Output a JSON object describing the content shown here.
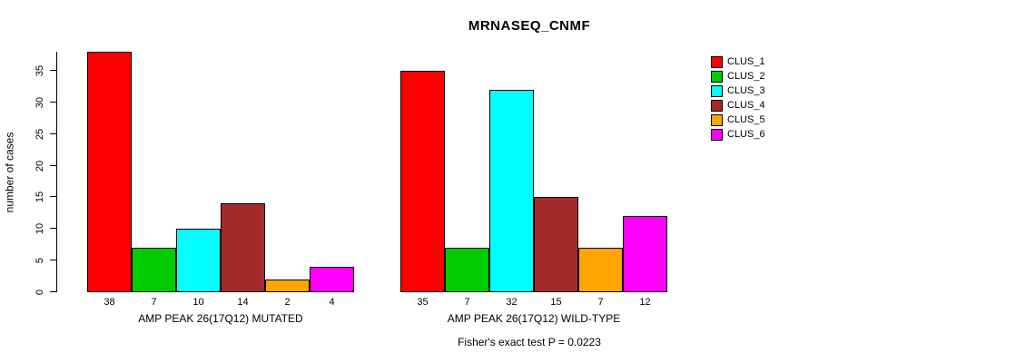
{
  "chart_data": {
    "type": "bar",
    "title": "MRNASEQ_CNMF",
    "ylabel": "number of cases",
    "subtitle": "Fisher's exact test P = 0.0223",
    "yticks": [
      0,
      5,
      10,
      15,
      20,
      25,
      30,
      35
    ],
    "ylim": [
      0,
      38
    ],
    "grid": false,
    "legend_position": "top-right",
    "legend": [
      {
        "label": "CLUS_1",
        "color": "#FF0000"
      },
      {
        "label": "CLUS_2",
        "color": "#00CC00"
      },
      {
        "label": "CLUS_3",
        "color": "#00FFFF"
      },
      {
        "label": "CLUS_4",
        "color": "#A52A2A"
      },
      {
        "label": "CLUS_5",
        "color": "#FFA500"
      },
      {
        "label": "CLUS_6",
        "color": "#FF00FF"
      }
    ],
    "groups": [
      {
        "label": "AMP PEAK 26(17Q12) MUTATED",
        "values": [
          38,
          7,
          10,
          14,
          2,
          4
        ]
      },
      {
        "label": "AMP PEAK 26(17Q12) WILD-TYPE",
        "values": [
          35,
          7,
          32,
          15,
          7,
          12
        ]
      }
    ]
  }
}
